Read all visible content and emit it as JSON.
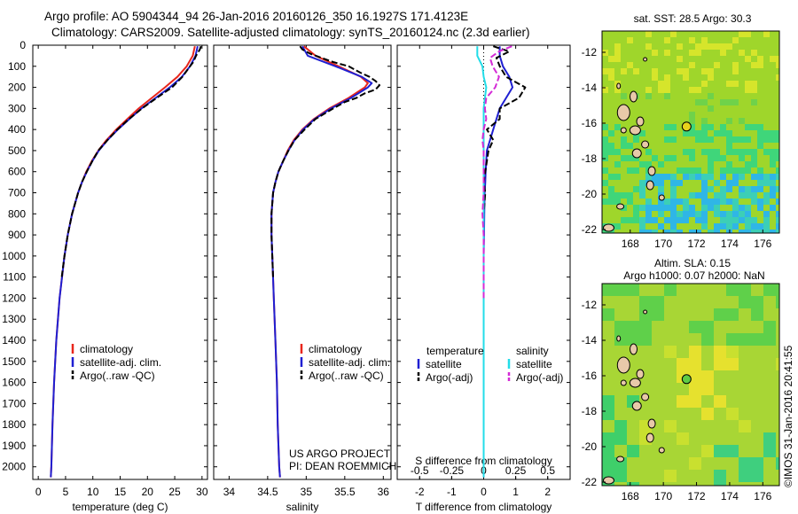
{
  "header": {
    "line1": "Argo profile: AO 5904344_94 26-Jan-2016 20160126_350 16.1927S 171.4123E",
    "line2": "Climatology: CARS2009. Satellite-adjusted climatology: synTS_20160124.nc (2.3d earlier)"
  },
  "colors": {
    "climatology": "#e8261c",
    "satellite": "#1f1fd2",
    "argo": "#000000",
    "salinity_sat": "#22dde8",
    "salinity_argo": "#d42bd6"
  },
  "depth_axis": {
    "ticks": [
      0,
      100,
      200,
      300,
      400,
      500,
      600,
      700,
      800,
      900,
      1000,
      1100,
      1200,
      1300,
      1400,
      1500,
      1600,
      1700,
      1800,
      1900,
      2000
    ],
    "range": [
      0,
      2060
    ]
  },
  "legend": {
    "climatology": "climatology",
    "satellite": "satellite-adj. clim.",
    "argo": "Argo(..raw -QC)"
  },
  "legend_diff": {
    "temp_header": "temperature",
    "sal_header": "salinity",
    "temp_sat": "satellite",
    "temp_argo": "Argo(-adj)",
    "sal_sat": "satellite",
    "sal_argo": "Argo(-adj)"
  },
  "credits": {
    "line1": "US ARGO PROJECT",
    "line2": "PI: DEAN ROEMMICH"
  },
  "maps": {
    "sst_title": "sat. SST: 28.5 Argo: 30.3",
    "sla_title1": "Altim. SLA: 0.15",
    "sla_title2": "Argo h1000: 0.07 h2000: NaN",
    "lat_ticks": [
      -12,
      -14,
      -16,
      -18,
      -20,
      -22
    ],
    "lon_ticks": [
      168,
      170,
      172,
      174,
      176
    ],
    "argo_lon": 171.4,
    "argo_lat": -16.19,
    "timestamp": "©IMOS 31-Jan-2016 20:41:55"
  },
  "chart_data": [
    {
      "type": "line",
      "title": "",
      "xlabel": "temperature (deg C)",
      "ylabel": "",
      "xlim": [
        -1,
        31
      ],
      "ylim": [
        2060,
        0
      ],
      "xticks": [
        0,
        5,
        10,
        15,
        20,
        25,
        30
      ],
      "series": [
        {
          "name": "climatology",
          "depth": [
            5,
            50,
            100,
            150,
            200,
            250,
            300,
            350,
            400,
            450,
            500,
            550,
            600,
            650,
            700,
            800,
            900,
            1000,
            1200,
            1400,
            1600,
            1800,
            2000,
            2050
          ],
          "values": [
            28.7,
            28.3,
            27.2,
            25.5,
            23.2,
            20.8,
            18.4,
            16.3,
            14.3,
            12.5,
            11.0,
            9.8,
            8.8,
            8.0,
            7.3,
            6.2,
            5.4,
            4.8,
            3.9,
            3.3,
            2.9,
            2.6,
            2.4,
            2.3
          ]
        },
        {
          "name": "satellite-adj. clim.",
          "depth": [
            5,
            50,
            100,
            150,
            200,
            250,
            300,
            350,
            400,
            450,
            500,
            550,
            600,
            650,
            700,
            800,
            900,
            1000,
            1200,
            1400,
            1600,
            1800,
            2000,
            2050
          ],
          "values": [
            29.2,
            28.8,
            27.8,
            26.3,
            24.1,
            21.5,
            18.9,
            16.7,
            14.6,
            12.7,
            11.1,
            9.9,
            8.9,
            8.0,
            7.3,
            6.2,
            5.4,
            4.8,
            3.9,
            3.3,
            2.9,
            2.6,
            2.4,
            2.3
          ]
        },
        {
          "name": "Argo(..raw -QC)",
          "depth": [
            5,
            20,
            50,
            80,
            100,
            150,
            200,
            250,
            300,
            350,
            400,
            450,
            500,
            550,
            600,
            650,
            700,
            800,
            900,
            1000,
            1100
          ],
          "values": [
            29.8,
            29.6,
            28.9,
            28.4,
            27.8,
            26.4,
            24.5,
            21.7,
            19.0,
            16.6,
            14.5,
            12.7,
            11.0,
            9.9,
            8.9,
            8.0,
            7.3,
            6.2,
            5.4,
            4.8,
            4.3
          ]
        }
      ]
    },
    {
      "type": "line",
      "title": "",
      "xlabel": "salinity",
      "ylabel": "",
      "xlim": [
        33.8,
        36.1
      ],
      "ylim": [
        2060,
        0
      ],
      "xticks": [
        34,
        34.5,
        35,
        35.5,
        36
      ],
      "series": [
        {
          "name": "climatology",
          "depth": [
            5,
            50,
            100,
            150,
            180,
            200,
            250,
            300,
            350,
            400,
            450,
            500,
            550,
            600,
            650,
            700,
            800,
            900,
            1000,
            1200,
            1400,
            1600,
            1800,
            2000,
            2050
          ],
          "values": [
            34.97,
            35.12,
            35.42,
            35.71,
            35.8,
            35.76,
            35.55,
            35.3,
            35.1,
            34.95,
            34.84,
            34.76,
            34.7,
            34.64,
            34.6,
            34.57,
            34.55,
            34.55,
            34.56,
            34.58,
            34.6,
            34.62,
            34.63,
            34.65,
            34.66
          ]
        },
        {
          "name": "satellite-adj. clim.",
          "depth": [
            5,
            50,
            100,
            150,
            180,
            200,
            250,
            300,
            350,
            400,
            450,
            500,
            550,
            600,
            650,
            700,
            800,
            900,
            1000,
            1200,
            1400,
            1600,
            1800,
            2000,
            2050
          ],
          "values": [
            34.95,
            35.02,
            35.38,
            35.72,
            35.85,
            35.8,
            35.58,
            35.32,
            35.11,
            34.96,
            34.85,
            34.77,
            34.7,
            34.64,
            34.6,
            34.57,
            34.55,
            34.55,
            34.56,
            34.58,
            34.6,
            34.62,
            34.63,
            34.65,
            34.66
          ]
        },
        {
          "name": "Argo(..raw -QC)",
          "depth": [
            5,
            20,
            40,
            60,
            80,
            100,
            130,
            150,
            170,
            190,
            210,
            230,
            250,
            270,
            300,
            350,
            400,
            450,
            500,
            550,
            600,
            650,
            700,
            800,
            900,
            1000,
            1100
          ],
          "values": [
            34.92,
            34.95,
            35.05,
            35.2,
            35.35,
            35.55,
            35.7,
            35.82,
            35.9,
            35.95,
            35.9,
            35.75,
            35.65,
            35.5,
            35.35,
            35.12,
            34.98,
            34.85,
            34.77,
            34.7,
            34.64,
            34.6,
            34.57,
            34.55,
            34.55,
            34.56,
            34.57
          ]
        }
      ]
    },
    {
      "type": "line",
      "title": "",
      "xlabel": "T difference from climatology",
      "x2label": "S difference from climatology",
      "xlim": [
        -2.7,
        2.7
      ],
      "ylim": [
        2060,
        0
      ],
      "xticks": [
        -2,
        -1,
        0,
        1,
        2
      ],
      "x2ticks": [
        -0.5,
        -0.25,
        0,
        0.25,
        0.5
      ],
      "series": [
        {
          "name": "temperature satellite",
          "depth": [
            5,
            50,
            100,
            150,
            200,
            250,
            300,
            350,
            400,
            450,
            500,
            550,
            600,
            650,
            700,
            800,
            900,
            1000,
            1200,
            1400,
            1600,
            1800,
            2000,
            2050
          ],
          "values": [
            0.5,
            0.5,
            0.6,
            0.8,
            0.9,
            0.7,
            0.5,
            0.4,
            0.3,
            0.2,
            0.1,
            0.08,
            0.06,
            0.05,
            0.03,
            0.02,
            0.01,
            0,
            0,
            0,
            0,
            0,
            0,
            0
          ]
        },
        {
          "name": "temperature Argo(-adj)",
          "depth": [
            5,
            30,
            60,
            100,
            150,
            200,
            250,
            300,
            350,
            400,
            450,
            500,
            550,
            600,
            650,
            700,
            800,
            900,
            1000,
            1100
          ],
          "values": [
            0.3,
            0.8,
            0.4,
            0.5,
            0.7,
            1.3,
            1.1,
            0.5,
            0.5,
            0.1,
            0.3,
            0.15,
            0.1,
            0.05,
            0.0,
            0.05,
            0.0,
            0.0,
            0.0,
            0.0
          ]
        },
        {
          "name": "salinity satellite",
          "depth": [
            5,
            50,
            100,
            150,
            200,
            250,
            300,
            400,
            500,
            600,
            700,
            800,
            900,
            1000,
            1200,
            1400,
            1600,
            1800,
            2000,
            2050
          ],
          "values": [
            -0.05,
            -0.05,
            -0.01,
            0.0,
            0.02,
            0.01,
            0.0,
            0.0,
            0.0,
            0.0,
            0.0,
            0.0,
            0.0,
            0.0,
            0.0,
            0.0,
            0.0,
            0.0,
            0.0,
            0.0
          ]
        },
        {
          "name": "salinity Argo(-adj)",
          "depth": [
            5,
            30,
            60,
            100,
            150,
            200,
            250,
            300,
            350,
            400,
            450,
            500,
            600,
            700,
            800,
            900,
            1000,
            1100,
            1200
          ],
          "values": [
            0.22,
            0.12,
            0.05,
            0.07,
            0.12,
            0.09,
            0.02,
            0.01,
            0.02,
            0.0,
            -0.01,
            0.0,
            0.0,
            0.0,
            -0.01,
            0.0,
            0.0,
            0.0,
            0.0
          ]
        }
      ]
    }
  ]
}
